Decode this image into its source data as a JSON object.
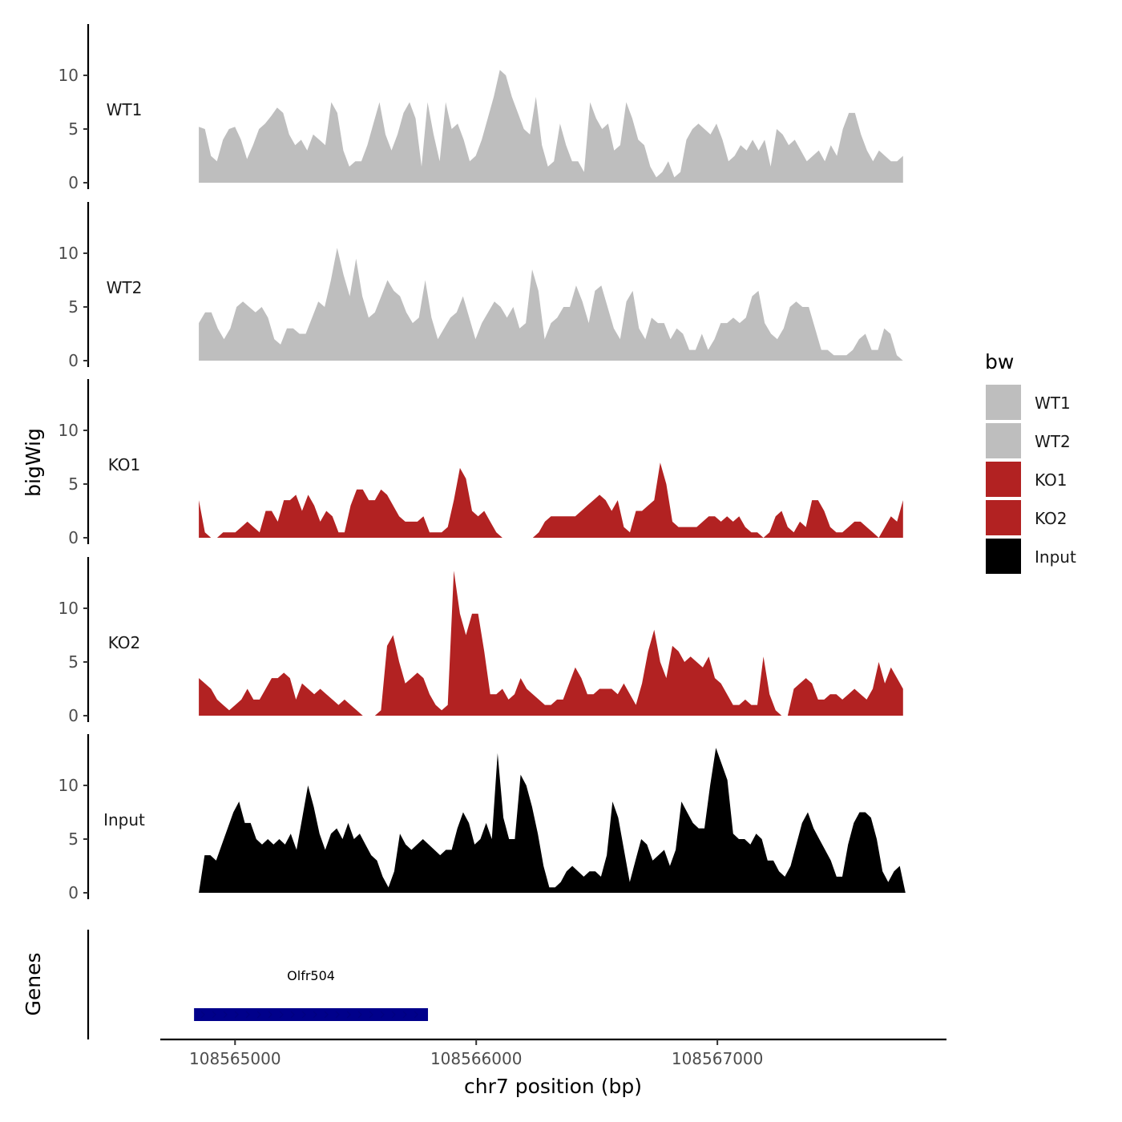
{
  "chart_data": {
    "type": "area",
    "title": "",
    "ylabel": "bigWig",
    "xlabel": "chr7 position (bp)",
    "xlim": [
      108564690,
      108567950
    ],
    "ylim": [
      0,
      14.5
    ],
    "y_ticks": [
      0,
      5,
      10
    ],
    "x_ticks": [
      108565000,
      108566000,
      108567000
    ],
    "x_tick_labels": [
      "108565000",
      "108566000",
      "108567000"
    ],
    "legend": {
      "title": "bw",
      "position": "right",
      "entries": [
        {
          "label": "WT1",
          "color": "#bebebe"
        },
        {
          "label": "WT2",
          "color": "#bebebe"
        },
        {
          "label": "KO1",
          "color": "#b22222"
        },
        {
          "label": "KO2",
          "color": "#b22222"
        },
        {
          "label": "Input",
          "color": "#000000"
        }
      ]
    },
    "series": [
      {
        "name": "WT1",
        "color": "#bebebe",
        "x_start": 108564850,
        "x_end": 108567770,
        "values": [
          5.2,
          5.0,
          2.5,
          2.0,
          4.0,
          5.0,
          5.2,
          4.0,
          2.2,
          3.5,
          5.0,
          5.5,
          6.2,
          7.0,
          6.5,
          4.5,
          3.5,
          4.0,
          3.0,
          4.5,
          4.0,
          3.5,
          7.5,
          6.5,
          3.0,
          1.5,
          2.0,
          2.0,
          3.5,
          5.5,
          7.5,
          4.5,
          3.0,
          4.5,
          6.5,
          7.5,
          6.0,
          1.5,
          7.5,
          4.5,
          2.0,
          7.5,
          5.0,
          5.5,
          4.0,
          2.0,
          2.5,
          4.0,
          6.0,
          8.0,
          10.5,
          10.0,
          8.0,
          6.5,
          5.0,
          4.5,
          8.0,
          3.5,
          1.5,
          2.0,
          5.5,
          3.5,
          2.0,
          2.0,
          1.0,
          7.5,
          6.0,
          5.0,
          5.5,
          3.0,
          3.5,
          7.5,
          6.0,
          4.0,
          3.5,
          1.5,
          0.5,
          1.0,
          2.0,
          0.5,
          1.0,
          4.0,
          5.0,
          5.5,
          5.0,
          4.5,
          5.5,
          4.0,
          2.0,
          2.5,
          3.5,
          3.0,
          4.0,
          3.0,
          4.0,
          1.5,
          5.0,
          4.5,
          3.5,
          4.0,
          3.0,
          2.0,
          2.5,
          3.0,
          2.0,
          3.5,
          2.5,
          5.0,
          6.5,
          6.5,
          4.5,
          3.0,
          2.0,
          3.0,
          2.5,
          2.0,
          2.0,
          2.5
        ]
      },
      {
        "name": "WT2",
        "color": "#bebebe",
        "x_start": 108564850,
        "x_end": 108567770,
        "values": [
          3.5,
          4.5,
          4.5,
          3.0,
          2.0,
          3.0,
          5.0,
          5.5,
          5.0,
          4.5,
          5.0,
          4.0,
          2.0,
          1.5,
          3.0,
          3.0,
          2.5,
          2.5,
          4.0,
          5.5,
          5.0,
          7.5,
          10.5,
          8.0,
          6.0,
          9.5,
          6.0,
          4.0,
          4.5,
          6.0,
          7.5,
          6.5,
          6.0,
          4.5,
          3.5,
          4.0,
          7.5,
          4.0,
          2.0,
          3.0,
          4.0,
          4.5,
          6.0,
          4.0,
          2.0,
          3.5,
          4.5,
          5.5,
          5.0,
          4.0,
          5.0,
          3.0,
          3.5,
          8.5,
          6.5,
          2.0,
          3.5,
          4.0,
          5.0,
          5.0,
          7.0,
          5.5,
          3.5,
          6.5,
          7.0,
          5.0,
          3.0,
          2.0,
          5.5,
          6.5,
          3.0,
          2.0,
          4.0,
          3.5,
          3.5,
          2.0,
          3.0,
          2.5,
          1.0,
          1.0,
          2.5,
          1.0,
          2.0,
          3.5,
          3.5,
          4.0,
          3.5,
          4.0,
          6.0,
          6.5,
          3.5,
          2.5,
          2.0,
          3.0,
          5.0,
          5.5,
          5.0,
          5.0,
          3.0,
          1.0,
          1.0,
          0.5,
          0.5,
          0.5,
          1.0,
          2.0,
          2.5,
          1.0,
          1.0,
          3.0,
          2.5,
          0.5,
          0.0
        ]
      },
      {
        "name": "KO1",
        "color": "#b22222",
        "x_start": 108564850,
        "x_end": 108567770,
        "values": [
          3.5,
          0.5,
          0.0,
          0.0,
          0.5,
          0.5,
          0.5,
          1.0,
          1.5,
          1.0,
          0.5,
          2.5,
          2.5,
          1.5,
          3.5,
          3.5,
          4.0,
          2.5,
          4.0,
          3.0,
          1.5,
          2.5,
          2.0,
          0.5,
          0.5,
          3.0,
          4.5,
          4.5,
          3.5,
          3.5,
          4.5,
          4.0,
          3.0,
          2.0,
          1.5,
          1.5,
          1.5,
          2.0,
          0.5,
          0.5,
          0.5,
          1.0,
          3.5,
          6.5,
          5.5,
          2.5,
          2.0,
          2.5,
          1.5,
          0.5,
          0.0,
          0.0,
          0.0,
          0.0,
          0.0,
          0.0,
          0.5,
          1.5,
          2.0,
          2.0,
          2.0,
          2.0,
          2.0,
          2.5,
          3.0,
          3.5,
          4.0,
          3.5,
          2.5,
          3.5,
          1.0,
          0.5,
          2.5,
          2.5,
          3.0,
          3.5,
          7.0,
          5.0,
          1.5,
          1.0,
          1.0,
          1.0,
          1.0,
          1.5,
          2.0,
          2.0,
          1.5,
          2.0,
          1.5,
          2.0,
          1.0,
          0.5,
          0.5,
          0.0,
          0.5,
          2.0,
          2.5,
          1.0,
          0.5,
          1.5,
          1.0,
          3.5,
          3.5,
          2.5,
          1.0,
          0.5,
          0.5,
          1.0,
          1.5,
          1.5,
          1.0,
          0.5,
          0.0,
          1.0,
          2.0,
          1.5,
          3.5
        ]
      },
      {
        "name": "KO2",
        "color": "#b22222",
        "x_start": 108564850,
        "x_end": 108567770,
        "values": [
          3.5,
          3.0,
          2.5,
          1.5,
          1.0,
          0.5,
          1.0,
          1.5,
          2.5,
          1.5,
          1.5,
          2.5,
          3.5,
          3.5,
          4.0,
          3.5,
          1.5,
          3.0,
          2.5,
          2.0,
          2.5,
          2.0,
          1.5,
          1.0,
          1.5,
          1.0,
          0.5,
          0.0,
          0.0,
          0.0,
          0.5,
          6.5,
          7.5,
          5.0,
          3.0,
          3.5,
          4.0,
          3.5,
          2.0,
          1.0,
          0.5,
          1.0,
          13.5,
          9.5,
          7.5,
          9.5,
          9.5,
          6.0,
          2.0,
          2.0,
          2.5,
          1.5,
          2.0,
          3.5,
          2.5,
          2.0,
          1.5,
          1.0,
          1.0,
          1.5,
          1.5,
          3.0,
          4.5,
          3.5,
          2.0,
          2.0,
          2.5,
          2.5,
          2.5,
          2.0,
          3.0,
          2.0,
          1.0,
          3.0,
          6.0,
          8.0,
          5.0,
          3.5,
          6.5,
          6.0,
          5.0,
          5.5,
          5.0,
          4.5,
          5.5,
          3.5,
          3.0,
          2.0,
          1.0,
          1.0,
          1.5,
          1.0,
          1.0,
          5.5,
          2.0,
          0.5,
          0.0,
          0.0,
          2.5,
          3.0,
          3.5,
          3.0,
          1.5,
          1.5,
          2.0,
          2.0,
          1.5,
          2.0,
          2.5,
          2.0,
          1.5,
          2.5,
          5.0,
          3.0,
          4.5,
          3.5,
          2.5
        ]
      },
      {
        "name": "Input",
        "color": "#000000",
        "x_start": 108564850,
        "x_end": 108567780,
        "values": [
          0.0,
          3.5,
          3.5,
          3.0,
          4.5,
          6.0,
          7.5,
          8.5,
          6.5,
          6.5,
          5.0,
          4.5,
          5.0,
          4.5,
          5.0,
          4.5,
          5.5,
          4.0,
          7.0,
          10.0,
          8.0,
          5.5,
          4.0,
          5.5,
          6.0,
          5.0,
          6.5,
          5.0,
          5.5,
          4.5,
          3.5,
          3.0,
          1.5,
          0.5,
          2.0,
          5.5,
          4.5,
          4.0,
          4.5,
          5.0,
          4.5,
          4.0,
          3.5,
          4.0,
          4.0,
          6.0,
          7.5,
          6.5,
          4.5,
          5.0,
          6.5,
          5.0,
          13.0,
          7.0,
          5.0,
          5.0,
          11.0,
          10.0,
          8.0,
          5.5,
          2.5,
          0.5,
          0.5,
          1.0,
          2.0,
          2.5,
          2.0,
          1.5,
          2.0,
          2.0,
          1.5,
          3.5,
          8.5,
          7.0,
          4.0,
          1.0,
          3.0,
          5.0,
          4.5,
          3.0,
          3.5,
          4.0,
          2.5,
          4.0,
          8.5,
          7.5,
          6.5,
          6.0,
          6.0,
          10.0,
          13.5,
          12.0,
          10.5,
          5.5,
          5.0,
          5.0,
          4.5,
          5.5,
          5.0,
          3.0,
          3.0,
          2.0,
          1.5,
          2.5,
          4.5,
          6.5,
          7.5,
          6.0,
          5.0,
          4.0,
          3.0,
          1.5,
          1.5,
          4.5,
          6.5,
          7.5,
          7.5,
          7.0,
          5.0,
          2.0,
          1.0,
          2.0,
          2.5,
          0.0
        ]
      }
    ],
    "genes_track": {
      "ylabel": "Genes",
      "genes": [
        {
          "name": "Olfr504",
          "start": 108564830,
          "end": 108565800,
          "color": "#00008b"
        }
      ]
    }
  }
}
